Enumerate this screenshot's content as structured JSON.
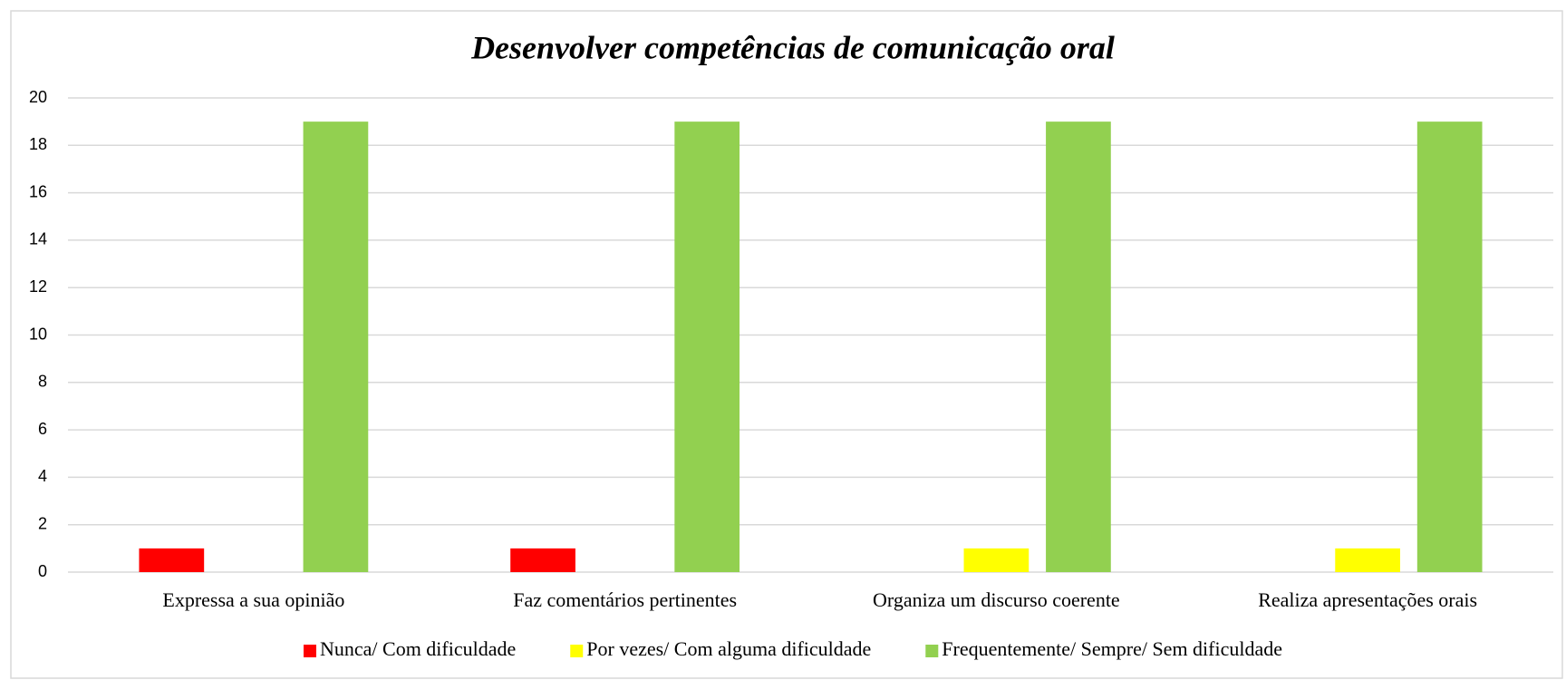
{
  "chart_data": {
    "type": "bar",
    "title": "Desenvolver competências de comunicação oral",
    "categories": [
      "Expressa a sua opinião",
      "Faz comentários pertinentes",
      "Organiza um discurso coerente",
      "Realiza apresentações orais"
    ],
    "series": [
      {
        "name": "Nunca/ Com dificuldade",
        "color": "#ff0000",
        "values": [
          1,
          1,
          0,
          0
        ]
      },
      {
        "name": "Por vezes/ Com alguma dificuldade",
        "color": "#ffff00",
        "values": [
          0,
          0,
          1,
          1
        ]
      },
      {
        "name": "Frequentemente/ Sempre/ Sem dificuldade",
        "color": "#92d050",
        "values": [
          19,
          19,
          19,
          19
        ]
      }
    ],
    "ylim": [
      0,
      20
    ],
    "yticks": [
      0,
      2,
      4,
      6,
      8,
      10,
      12,
      14,
      16,
      18,
      20
    ],
    "grid": true,
    "legend": "bottom"
  }
}
